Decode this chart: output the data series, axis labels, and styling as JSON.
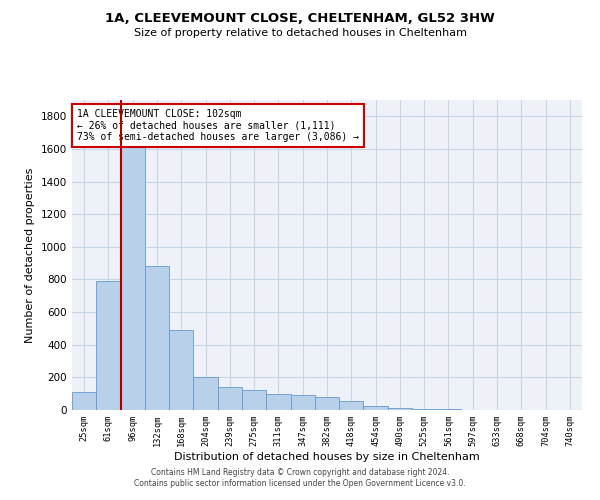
{
  "title_line1": "1A, CLEEVEMOUNT CLOSE, CHELTENHAM, GL52 3HW",
  "title_line2": "Size of property relative to detached houses in Cheltenham",
  "xlabel": "Distribution of detached houses by size in Cheltenham",
  "ylabel": "Number of detached properties",
  "footer_line1": "Contains HM Land Registry data © Crown copyright and database right 2024.",
  "footer_line2": "Contains public sector information licensed under the Open Government Licence v3.0.",
  "categories": [
    "25sqm",
    "61sqm",
    "96sqm",
    "132sqm",
    "168sqm",
    "204sqm",
    "239sqm",
    "275sqm",
    "311sqm",
    "347sqm",
    "382sqm",
    "418sqm",
    "454sqm",
    "490sqm",
    "525sqm",
    "561sqm",
    "597sqm",
    "633sqm",
    "668sqm",
    "704sqm",
    "740sqm"
  ],
  "values": [
    110,
    790,
    1650,
    880,
    490,
    200,
    140,
    120,
    100,
    90,
    80,
    55,
    25,
    15,
    8,
    5,
    3,
    2,
    1,
    0,
    0
  ],
  "bar_color": "#b8d0ea",
  "bar_edge_color": "#6699cc",
  "grid_color": "#c8d4e8",
  "background_color": "#eef2f8",
  "ylim": [
    0,
    1900
  ],
  "yticks": [
    0,
    200,
    400,
    600,
    800,
    1000,
    1200,
    1400,
    1600,
    1800
  ],
  "property_bin_index": 2,
  "annotation_text_line1": "1A CLEEVEMOUNT CLOSE: 102sqm",
  "annotation_text_line2": "← 26% of detached houses are smaller (1,111)",
  "annotation_text_line3": "73% of semi-detached houses are larger (3,086) →",
  "vline_color": "#aa0000",
  "annotation_box_color": "#ffffff",
  "annotation_box_edge": "#cc0000"
}
